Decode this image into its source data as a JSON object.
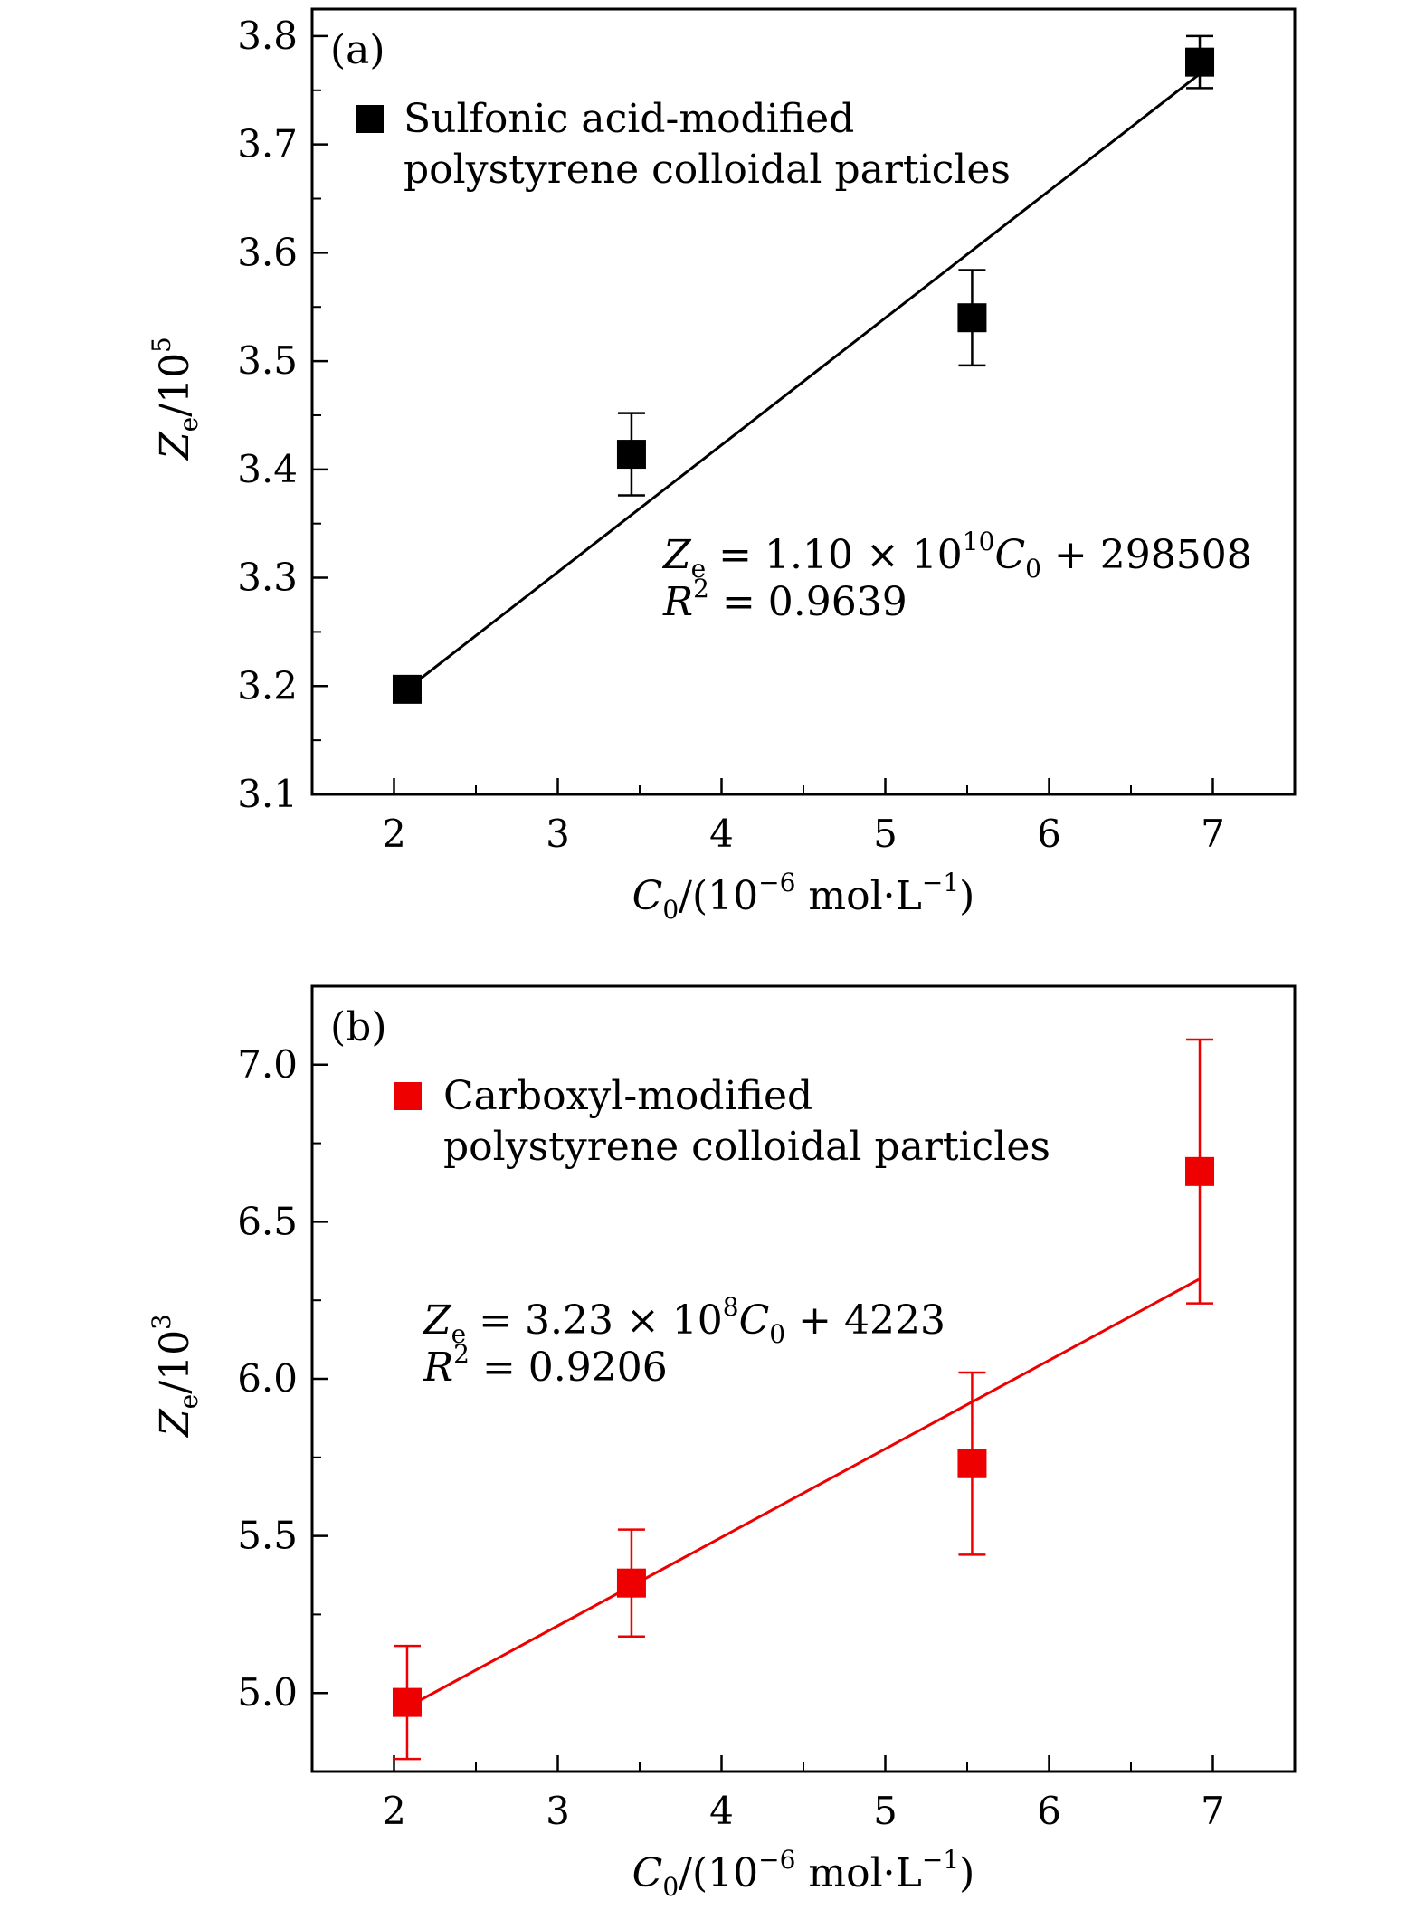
{
  "chart_data": [
    {
      "type": "scatter",
      "panel_label": "(a)",
      "xlabel": "C0/(10−6 mol·L−1)",
      "ylabel": "Ze/105",
      "xlim": [
        1.5,
        7.5
      ],
      "ylim": [
        3.1,
        3.825
      ],
      "xticks": [
        2,
        3,
        4,
        5,
        6,
        7
      ],
      "yticks": [
        3.1,
        3.2,
        3.3,
        3.4,
        3.5,
        3.6,
        3.7,
        3.8
      ],
      "xtick_labels": [
        "2",
        "3",
        "4",
        "5",
        "6",
        "7"
      ],
      "ytick_labels": [
        "3.1",
        "3.2",
        "3.3",
        "3.4",
        "3.5",
        "3.6",
        "3.7",
        "3.8"
      ],
      "grid": false,
      "legend_position": "top-left",
      "series": [
        {
          "name": "Sulfonic acid-modified polystyrene colloidal particles",
          "color": "#000000",
          "marker": "square",
          "x": [
            2.08,
            3.45,
            5.53,
            6.92
          ],
          "y": [
            3.197,
            3.414,
            3.54,
            3.776
          ],
          "error": [
            0.0,
            0.038,
            0.044,
            0.024
          ]
        }
      ],
      "fit": {
        "color": "#000000",
        "x_range": [
          2.08,
          6.92
        ],
        "y_range": [
          3.1973,
          3.7651
        ]
      },
      "legend_lines": [
        "Sulfonic acid-modified",
        "polystyrene colloidal particles"
      ],
      "equation": {
        "lhs_var": "Z",
        "lhs_sub": "e",
        "mid": " = 1.10 × 10",
        "exp": "10",
        "var": "C",
        "var_sub": "0",
        "rhs": " + 298508",
        "r2_var": "R",
        "r2_exp": "2",
        "r2_rhs": " = 0.9639"
      }
    },
    {
      "type": "scatter",
      "panel_label": "(b)",
      "xlabel": "C0/(10−6 mol·L−1)",
      "ylabel": "Ze/103",
      "xlim": [
        1.5,
        7.5
      ],
      "ylim": [
        4.75,
        7.25
      ],
      "xticks": [
        2,
        3,
        4,
        5,
        6,
        7
      ],
      "yticks": [
        5.0,
        5.5,
        6.0,
        6.5,
        7.0
      ],
      "xtick_labels": [
        "2",
        "3",
        "4",
        "5",
        "6",
        "7"
      ],
      "ytick_labels": [
        "5.0",
        "5.5",
        "6.0",
        "6.5",
        "7.0"
      ],
      "grid": false,
      "legend_position": "top-left",
      "series": [
        {
          "name": "Carboxyl-modified polystyrene colloidal particles",
          "color": "#ee0000",
          "marker": "square",
          "x": [
            2.08,
            3.45,
            5.53,
            6.92
          ],
          "y": [
            4.97,
            5.35,
            5.73,
            6.66
          ],
          "error": [
            0.18,
            0.17,
            0.29,
            0.42
          ]
        }
      ],
      "fit": {
        "color": "#ee0000",
        "x_range": [
          2.08,
          6.92
        ],
        "y_range": [
          4.9548,
          6.3181
        ]
      },
      "legend_lines": [
        "Carboxyl-modified",
        "polystyrene colloidal particles"
      ],
      "equation": {
        "lhs_var": "Z",
        "lhs_sub": "e",
        "mid": " = 3.23 × 10",
        "exp": "8",
        "var": "C",
        "var_sub": "0",
        "rhs": " + 4223",
        "r2_var": "R",
        "r2_exp": "2",
        "r2_rhs": " = 0.9206"
      }
    }
  ],
  "axis_text": {
    "x_var": "C",
    "x_sub": "0",
    "x_pre": "/(10",
    "x_exp1": "−6",
    "x_mid": " mol·L",
    "x_exp2": "−1",
    "x_post": ")",
    "y_var": "Z",
    "y_sub": "e",
    "y_pre": "/10",
    "y_exp_a": "5",
    "y_exp_b": "3"
  }
}
